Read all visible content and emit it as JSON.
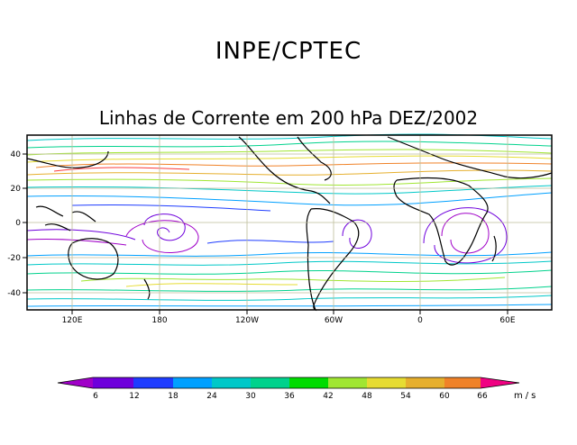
{
  "title": "INPE/CPTEC",
  "subtitle": "Linhas de Corrente em 200 hPa DEZ/2002",
  "map": {
    "lat_labels": [
      "40",
      "20",
      "0",
      "-20",
      "-40"
    ],
    "lon_labels": [
      "120E",
      "180",
      "120W",
      "60W",
      "0",
      "60E"
    ],
    "land_color": "#000000",
    "grid_color": "#bdbd9a"
  },
  "legend": {
    "units": "m/s",
    "tick_labels": [
      "6",
      "12",
      "18",
      "24",
      "30",
      "36",
      "42",
      "48",
      "54",
      "60",
      "66"
    ],
    "colors": [
      "#a000c8",
      "#6e00dc",
      "#1e3cff",
      "#00a0ff",
      "#00c8c8",
      "#00d28c",
      "#00dc00",
      "#a0e632",
      "#e6dc32",
      "#e6af2d",
      "#f08228",
      "#fa3c3c",
      "#f00082"
    ]
  }
}
